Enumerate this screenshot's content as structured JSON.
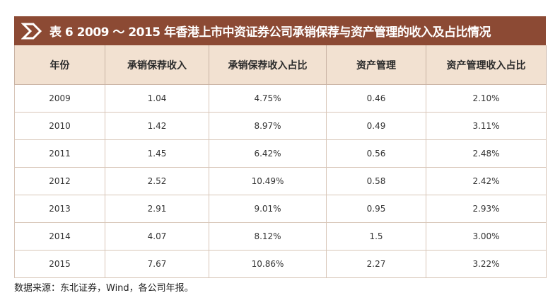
{
  "title": "表 6  2009 ～ 2015 年香港上市中资证券公司承销保荐与资产管理的收入及占比情况",
  "colors": {
    "title_bg": "#8c4a34",
    "header_bg": "#f2e1d1",
    "arrow": "#ffffff"
  },
  "icon": "arrow-right-icon",
  "table": {
    "headers": [
      "年份",
      "承销保荐收入",
      "承销保荐收入占比",
      "资产管理",
      "资产管理收入占比"
    ],
    "rows": [
      [
        "2009",
        "1.04",
        "4.75%",
        "0.46",
        "2.10%"
      ],
      [
        "2010",
        "1.42",
        "8.97%",
        "0.49",
        "3.11%"
      ],
      [
        "2011",
        "1.45",
        "6.42%",
        "0.56",
        "2.48%"
      ],
      [
        "2012",
        "2.52",
        "10.49%",
        "0.58",
        "2.42%"
      ],
      [
        "2013",
        "2.91",
        "9.01%",
        "0.95",
        "2.93%"
      ],
      [
        "2014",
        "4.07",
        "8.12%",
        "1.5",
        "3.00%"
      ],
      [
        "2015",
        "7.67",
        "10.86%",
        "2.27",
        "3.22%"
      ]
    ]
  },
  "source": "数据来源：东北证券，Wind，各公司年报。"
}
